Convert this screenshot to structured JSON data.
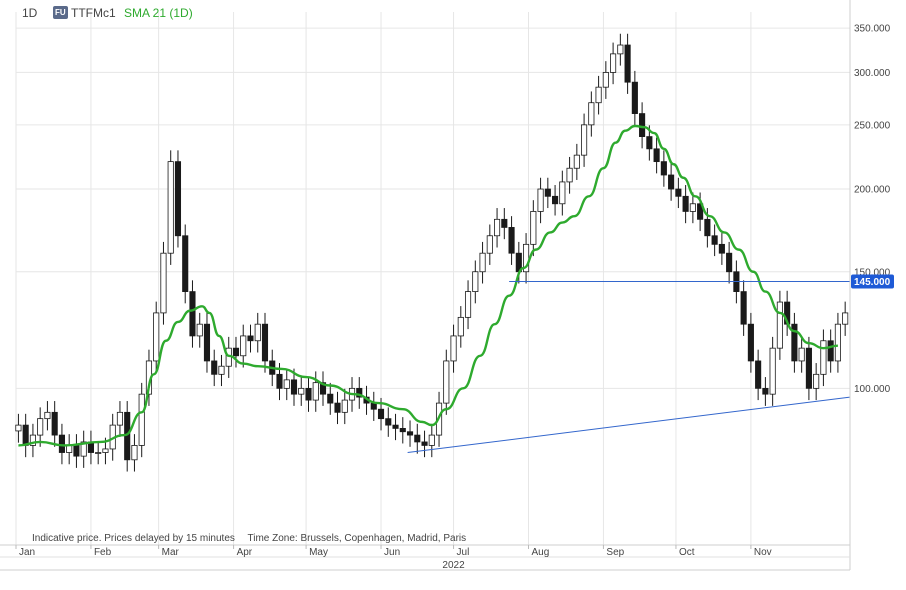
{
  "header": {
    "timeframe": "1D",
    "exchange_badge": "FU",
    "symbol": "TTFMc1",
    "indicator": "SMA 21 (1D)"
  },
  "footnote": {
    "delay_text": "Indicative price. Prices delayed by 15 minutes",
    "timezone_text": "Time Zone: Brussels, Copenhagen, Madrid, Paris"
  },
  "colors": {
    "candle": "#1a1a1a",
    "sma": "#2eaa2e",
    "trendline": "#3366cc",
    "price_marker": "#1e5ad6",
    "grid": "#e6e6e6"
  },
  "chart_data": {
    "type": "candlestick",
    "year_label": "2022",
    "x_ticks": [
      "Jan",
      "Feb",
      "Mar",
      "Apr",
      "May",
      "Jun",
      "Jul",
      "Aug",
      "Sep",
      "Oct",
      "Nov"
    ],
    "y_ticks": [
      "350.000",
      "300.000",
      "250.000",
      "200.000",
      "150.000",
      "100.000"
    ],
    "ylim": [
      58,
      360
    ],
    "y_log": true,
    "current_price_label": "145.000",
    "current_price": 145,
    "close_series": [
      [
        1,
        88
      ],
      [
        4,
        82
      ],
      [
        7,
        85
      ],
      [
        10,
        90
      ],
      [
        13,
        92
      ],
      [
        16,
        85
      ],
      [
        19,
        80
      ],
      [
        22,
        82
      ],
      [
        25,
        79
      ],
      [
        28,
        83
      ],
      [
        31,
        80
      ],
      [
        34,
        80
      ],
      [
        37,
        81
      ],
      [
        40,
        88
      ],
      [
        43,
        92
      ],
      [
        46,
        78
      ],
      [
        49,
        82
      ],
      [
        52,
        98
      ],
      [
        55,
        110
      ],
      [
        58,
        130
      ],
      [
        61,
        160
      ],
      [
        64,
        220
      ],
      [
        67,
        170
      ],
      [
        70,
        140
      ],
      [
        73,
        120
      ],
      [
        76,
        125
      ],
      [
        79,
        110
      ],
      [
        82,
        105
      ],
      [
        85,
        108
      ],
      [
        88,
        115
      ],
      [
        91,
        112
      ],
      [
        94,
        120
      ],
      [
        97,
        118
      ],
      [
        100,
        125
      ],
      [
        103,
        110
      ],
      [
        106,
        105
      ],
      [
        109,
        100
      ],
      [
        112,
        103
      ],
      [
        115,
        98
      ],
      [
        118,
        100
      ],
      [
        121,
        96
      ],
      [
        124,
        102
      ],
      [
        127,
        98
      ],
      [
        130,
        95
      ],
      [
        133,
        92
      ],
      [
        136,
        96
      ],
      [
        139,
        100
      ],
      [
        142,
        97
      ],
      [
        145,
        95
      ],
      [
        148,
        93
      ],
      [
        151,
        90
      ],
      [
        154,
        88
      ],
      [
        157,
        87
      ],
      [
        160,
        86
      ],
      [
        163,
        85
      ],
      [
        166,
        83
      ],
      [
        169,
        82
      ],
      [
        172,
        85
      ],
      [
        175,
        95
      ],
      [
        178,
        110
      ],
      [
        181,
        120
      ],
      [
        184,
        128
      ],
      [
        187,
        140
      ],
      [
        190,
        150
      ],
      [
        193,
        160
      ],
      [
        196,
        170
      ],
      [
        199,
        180
      ],
      [
        202,
        175
      ],
      [
        205,
        160
      ],
      [
        208,
        150
      ],
      [
        211,
        165
      ],
      [
        214,
        185
      ],
      [
        217,
        200
      ],
      [
        220,
        195
      ],
      [
        223,
        190
      ],
      [
        226,
        205
      ],
      [
        229,
        215
      ],
      [
        232,
        225
      ],
      [
        235,
        250
      ],
      [
        238,
        270
      ],
      [
        241,
        285
      ],
      [
        244,
        300
      ],
      [
        247,
        320
      ],
      [
        250,
        330
      ],
      [
        253,
        290
      ],
      [
        256,
        260
      ],
      [
        259,
        240
      ],
      [
        262,
        230
      ],
      [
        265,
        220
      ],
      [
        268,
        210
      ],
      [
        271,
        200
      ],
      [
        274,
        195
      ],
      [
        277,
        185
      ],
      [
        280,
        190
      ],
      [
        283,
        180
      ],
      [
        286,
        170
      ],
      [
        289,
        165
      ],
      [
        292,
        160
      ],
      [
        295,
        150
      ],
      [
        298,
        140
      ],
      [
        301,
        125
      ],
      [
        304,
        110
      ],
      [
        307,
        100
      ],
      [
        310,
        98
      ],
      [
        313,
        115
      ],
      [
        316,
        135
      ],
      [
        319,
        125
      ],
      [
        322,
        110
      ],
      [
        325,
        115
      ],
      [
        328,
        100
      ],
      [
        331,
        105
      ],
      [
        334,
        118
      ],
      [
        337,
        110
      ],
      [
        340,
        125
      ],
      [
        343,
        130
      ]
    ],
    "sma_series": [
      [
        1,
        82
      ],
      [
        10,
        83
      ],
      [
        20,
        82
      ],
      [
        35,
        83
      ],
      [
        45,
        85
      ],
      [
        52,
        92
      ],
      [
        57,
        105
      ],
      [
        62,
        118
      ],
      [
        67,
        126
      ],
      [
        72,
        131
      ],
      [
        77,
        133
      ],
      [
        80,
        130
      ],
      [
        84,
        120
      ],
      [
        88,
        112
      ],
      [
        94,
        109
      ],
      [
        100,
        108
      ],
      [
        110,
        107
      ],
      [
        120,
        104
      ],
      [
        130,
        101
      ],
      [
        140,
        98
      ],
      [
        150,
        95
      ],
      [
        160,
        93
      ],
      [
        168,
        89
      ],
      [
        172,
        88
      ],
      [
        178,
        93
      ],
      [
        185,
        100
      ],
      [
        192,
        112
      ],
      [
        198,
        125
      ],
      [
        204,
        138
      ],
      [
        210,
        152
      ],
      [
        215,
        162
      ],
      [
        221,
        172
      ],
      [
        226,
        178
      ],
      [
        231,
        182
      ],
      [
        237,
        195
      ],
      [
        243,
        215
      ],
      [
        248,
        235
      ],
      [
        252,
        245
      ],
      [
        256,
        249
      ],
      [
        260,
        248
      ],
      [
        264,
        243
      ],
      [
        268,
        230
      ],
      [
        272,
        218
      ],
      [
        276,
        208
      ],
      [
        281,
        195
      ],
      [
        287,
        182
      ],
      [
        293,
        172
      ],
      [
        299,
        162
      ],
      [
        305,
        150
      ],
      [
        310,
        140
      ],
      [
        316,
        130
      ],
      [
        322,
        122
      ],
      [
        328,
        117
      ],
      [
        334,
        115
      ],
      [
        340,
        116
      ]
    ],
    "trendline": {
      "start": [
        162,
        80
      ],
      "end": [
        345,
        97
      ]
    },
    "horizontal_line": {
      "start_day": 204,
      "value": 145
    }
  }
}
